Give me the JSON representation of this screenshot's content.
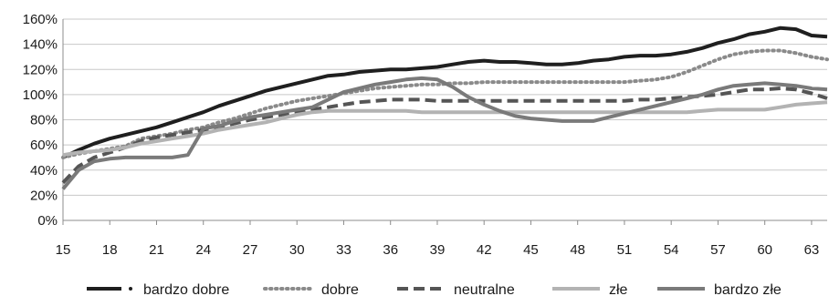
{
  "chart_data": {
    "type": "line",
    "title": "",
    "xlabel": "",
    "ylabel": "",
    "x": [
      15,
      16,
      17,
      18,
      19,
      20,
      21,
      22,
      23,
      24,
      25,
      26,
      27,
      28,
      29,
      30,
      31,
      32,
      33,
      34,
      35,
      36,
      37,
      38,
      39,
      40,
      41,
      42,
      43,
      44,
      45,
      46,
      47,
      48,
      49,
      50,
      51,
      52,
      53,
      54,
      55,
      56,
      57,
      58,
      59,
      60,
      61,
      62,
      63,
      64
    ],
    "x_ticks": [
      15,
      18,
      21,
      24,
      27,
      30,
      33,
      36,
      39,
      42,
      45,
      48,
      51,
      54,
      57,
      60,
      63
    ],
    "xlim": [
      15,
      64
    ],
    "y_ticks": [
      0,
      20,
      40,
      60,
      80,
      100,
      120,
      140,
      160
    ],
    "ylim": [
      0,
      160
    ],
    "y_unit": "%",
    "grid": "horizontal",
    "legend_position": "bottom",
    "series": [
      {
        "name": "bardzo dobre",
        "color": "#1f1f1f",
        "style": "dash-dot",
        "values": [
          50,
          56,
          61,
          65,
          68,
          71,
          74,
          78,
          82,
          86,
          91,
          95,
          99,
          103,
          106,
          109,
          112,
          115,
          116,
          118,
          119,
          120,
          120,
          121,
          122,
          124,
          126,
          127,
          126,
          126,
          125,
          124,
          124,
          125,
          127,
          128,
          130,
          131,
          131,
          132,
          134,
          137,
          141,
          144,
          148,
          150,
          153,
          152,
          147,
          146
        ]
      },
      {
        "name": "dobre",
        "color": "#8a8a8a",
        "style": "dotted",
        "values": [
          50,
          53,
          55,
          57,
          59,
          65,
          67,
          69,
          72,
          74,
          78,
          81,
          85,
          89,
          92,
          95,
          97,
          99,
          101,
          103,
          105,
          106,
          107,
          108,
          108,
          109,
          109,
          110,
          110,
          110,
          110,
          110,
          110,
          110,
          110,
          110,
          110,
          111,
          112,
          114,
          118,
          123,
          128,
          132,
          134,
          135,
          135,
          133,
          130,
          128
        ]
      },
      {
        "name": "neutralne",
        "color": "#555555",
        "style": "dashed",
        "values": [
          30,
          43,
          50,
          54,
          58,
          63,
          66,
          68,
          70,
          72,
          74,
          77,
          80,
          82,
          84,
          86,
          88,
          90,
          92,
          94,
          95,
          96,
          96,
          96,
          95,
          95,
          95,
          95,
          95,
          95,
          95,
          95,
          95,
          95,
          95,
          95,
          95,
          96,
          96,
          97,
          98,
          99,
          100,
          102,
          104,
          104,
          105,
          104,
          101,
          97
        ]
      },
      {
        "name": "złe",
        "color": "#b3b3b3",
        "style": "solid",
        "values": [
          52,
          54,
          55,
          56,
          58,
          61,
          63,
          65,
          67,
          69,
          72,
          74,
          76,
          78,
          81,
          84,
          86,
          87,
          87,
          87,
          87,
          87,
          87,
          86,
          86,
          86,
          86,
          86,
          86,
          86,
          86,
          86,
          86,
          86,
          86,
          86,
          86,
          86,
          86,
          86,
          86,
          87,
          88,
          88,
          88,
          88,
          90,
          92,
          93,
          94
        ]
      },
      {
        "name": "bardzo złe",
        "color": "#7a7a7a",
        "style": "solid",
        "values": [
          25,
          40,
          47,
          49,
          50,
          50,
          50,
          50,
          52,
          73,
          75,
          79,
          82,
          84,
          86,
          88,
          90,
          96,
          102,
          105,
          108,
          110,
          112,
          113,
          112,
          106,
          98,
          92,
          87,
          83,
          81,
          80,
          79,
          79,
          79,
          82,
          85,
          88,
          91,
          94,
          97,
          100,
          104,
          107,
          108,
          109,
          108,
          107,
          105,
          104
        ]
      }
    ]
  }
}
